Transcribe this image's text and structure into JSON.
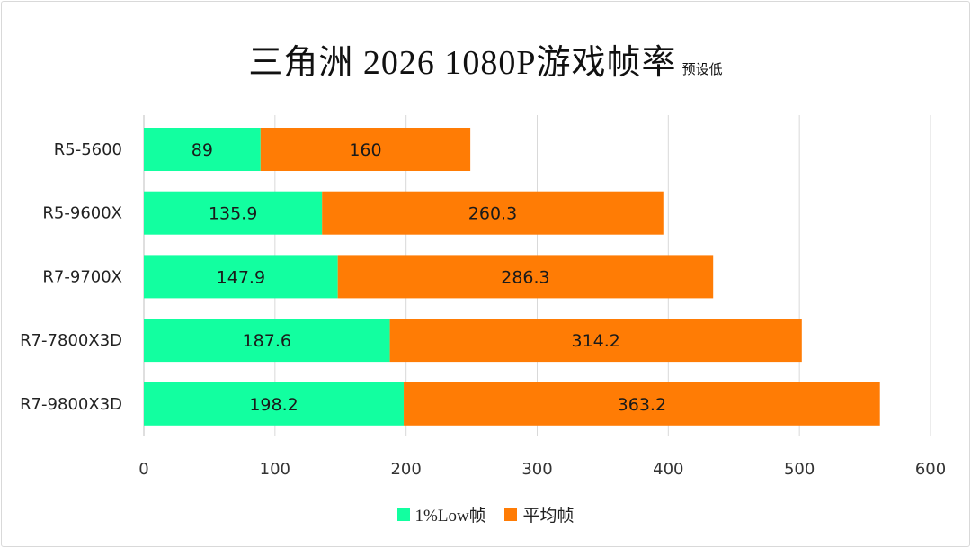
{
  "chart_data": {
    "type": "bar",
    "orientation": "horizontal",
    "stacked": true,
    "title": "三角洲 2026 1080P游戏帧率",
    "subtitle": "预设低",
    "categories": [
      "R5-5600",
      "R5-9600X",
      "R7-9700X",
      "R7-7800X3D",
      "R7-9800X3D"
    ],
    "series": [
      {
        "name": "1%Low帧",
        "color": "#12ffa0",
        "values": [
          89,
          135.9,
          147.9,
          187.6,
          198.2
        ]
      },
      {
        "name": "平均帧",
        "color": "#ff7c05",
        "values": [
          160,
          260.3,
          286.3,
          314.2,
          363.2
        ]
      }
    ],
    "xlim": [
      0,
      600
    ],
    "xticks": [
      "0",
      "100",
      "200",
      "300",
      "400",
      "500",
      "600"
    ],
    "grid": true,
    "legend_position": "bottom"
  }
}
